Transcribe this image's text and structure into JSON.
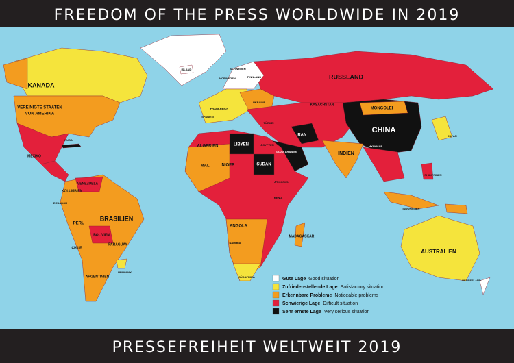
{
  "header": {
    "title": "FREEDOM OF THE PRESS WORLDWIDE IN 2019"
  },
  "footer": {
    "title": "PRESSEFREIHEIT WELTWEIT 2019"
  },
  "legend": [
    {
      "label": "Gute Lage",
      "translation": "Good situation",
      "color": "#ffffff"
    },
    {
      "label": "Zufriedenstellende Lage",
      "translation": "Satisfactory situation",
      "color": "#f5e43c"
    },
    {
      "label": "Erkennbare Probleme",
      "translation": "Noticeable problems",
      "color": "#f39c1f"
    },
    {
      "label": "Schwierige Lage",
      "translation": "Difficult situation",
      "color": "#e3203b"
    },
    {
      "label": "Sehr ernste Lage",
      "translation": "Very serious situation",
      "color": "#111111"
    }
  ],
  "labels": [
    "KANADA",
    "VEREINIGTE STAATEN",
    "VON AMERIKA",
    "RUSSLAND",
    "CHINA",
    "BRASILIEN",
    "AUSTRALIEN",
    "INDIEN",
    "MONGOLEI",
    "KASACHSTAN",
    "IRAN",
    "LIBYEN",
    "ALGERIEN",
    "SUDAN",
    "MALI",
    "NIGER",
    "ANGOLA",
    "PERU",
    "BOLIVIEN",
    "ARGENTINIEN",
    "KOLUMBIEN",
    "VENEZUELA",
    "MEXIKO",
    "MADAGASKAR",
    "JAPAN",
    "NEUSEELAND",
    "INDONESIEN",
    "PHILIPPINEN",
    "SAUDI ARABIEN",
    "TÜRKEI",
    "UKRAINE",
    "SCHWEDEN",
    "FINNLAND",
    "ISLAND",
    "NORWEGEN",
    "FRANKREICH",
    "SPANIEN",
    "ÄGYPTEN",
    "ÄTHIOPIEN",
    "KENIA",
    "SÜDAFRIKA",
    "NAMIBIA",
    "PARAGUAY",
    "CHILE",
    "URUGUAY",
    "ECUADOR",
    "KUBA",
    "MYANMAR"
  ]
}
